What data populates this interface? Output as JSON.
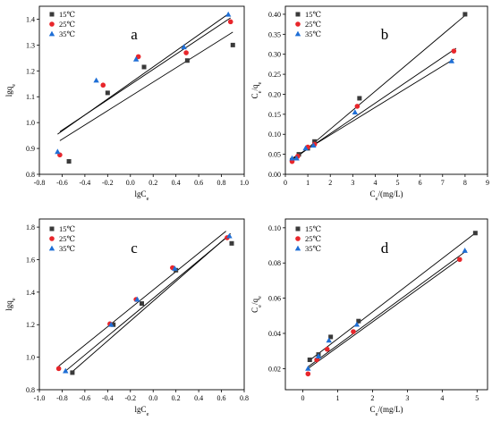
{
  "colors": {
    "series_15": "#3a3a3a",
    "series_25": "#e8262b",
    "series_35": "#1f6fd6",
    "fit_line": "#000000"
  },
  "chart_data": [
    {
      "type": "scatter",
      "panel": "a",
      "xlabel": "lgC",
      "xlabel_sub": "e",
      "ylabel": "lgq",
      "ylabel_sub": "e",
      "xlim": [
        -0.8,
        1.0
      ],
      "ylim": [
        0.8,
        1.45
      ],
      "xticks": [
        -0.8,
        -0.6,
        -0.4,
        -0.2,
        0.0,
        0.2,
        0.4,
        0.6,
        0.8,
        1.0
      ],
      "xtick_labels": [
        "-0.8",
        "-0.6",
        "-0.4",
        "-0.2",
        "0.0",
        "0.2",
        "0.4",
        "0.6",
        "0.8",
        "1.0"
      ],
      "yticks": [
        0.8,
        0.9,
        1.0,
        1.1,
        1.2,
        1.3,
        1.4
      ],
      "ytick_labels": [
        "0.8",
        "0.9",
        "1.0",
        "1.1",
        "1.2",
        "1.3",
        "1.4"
      ],
      "legend_position": "top-left",
      "series": [
        {
          "name": "15℃",
          "marker": "square",
          "x": [
            -0.54,
            -0.2,
            0.12,
            0.5,
            0.9
          ],
          "y": [
            0.85,
            1.115,
            1.215,
            1.24,
            1.3
          ],
          "fit": [
            [
              -0.62,
              0.93
            ],
            [
              0.9,
              1.35
            ]
          ]
        },
        {
          "name": "25℃",
          "marker": "circle",
          "x": [
            -0.62,
            -0.24,
            0.07,
            0.49,
            0.88
          ],
          "y": [
            0.875,
            1.145,
            1.255,
            1.27,
            1.39
          ],
          "fit": [
            [
              -0.62,
              0.965
            ],
            [
              0.88,
              1.405
            ]
          ]
        },
        {
          "name": "35℃",
          "marker": "triangle",
          "x": [
            -0.64,
            -0.3,
            0.05,
            0.47,
            0.86
          ],
          "y": [
            0.887,
            1.163,
            1.245,
            1.292,
            1.418
          ],
          "fit": [
            [
              -0.64,
              0.955
            ],
            [
              0.86,
              1.42
            ]
          ]
        }
      ]
    },
    {
      "type": "scatter",
      "panel": "b",
      "xlabel": "C",
      "xlabel_sub": "e",
      "xlabel_suffix": "/(mg/L)",
      "ylabel": "C",
      "ylabel_sub": "e",
      "ylabel_mid": "/q",
      "ylabel_sub2": "e",
      "xlim": [
        0,
        9
      ],
      "ylim": [
        0,
        0.42
      ],
      "xticks": [
        0,
        1,
        2,
        3,
        4,
        5,
        6,
        7,
        8,
        9
      ],
      "xtick_labels": [
        "0",
        "1",
        "2",
        "3",
        "4",
        "5",
        "6",
        "7",
        "8",
        "9"
      ],
      "yticks": [
        0.0,
        0.05,
        0.1,
        0.15,
        0.2,
        0.25,
        0.3,
        0.35,
        0.4
      ],
      "ytick_labels": [
        "0.00",
        "0.05",
        "0.10",
        "0.15",
        "0.20",
        "0.25",
        "0.30",
        "0.35",
        "0.40"
      ],
      "legend_position": "top-left",
      "series": [
        {
          "name": "15℃",
          "marker": "square",
          "x": [
            0.3,
            0.6,
            1.0,
            1.3,
            3.3,
            8.0
          ],
          "y": [
            0.035,
            0.05,
            0.065,
            0.082,
            0.19,
            0.4
          ],
          "fit": [
            [
              0.25,
              0.03
            ],
            [
              8.0,
              0.397
            ]
          ]
        },
        {
          "name": "25℃",
          "marker": "circle",
          "x": [
            0.3,
            0.55,
            1.0,
            1.3,
            3.2,
            7.5
          ],
          "y": [
            0.032,
            0.045,
            0.068,
            0.075,
            0.17,
            0.308
          ],
          "fit": [
            [
              0.25,
              0.035
            ],
            [
              7.6,
              0.315
            ]
          ]
        },
        {
          "name": "35℃",
          "marker": "triangle",
          "x": [
            0.3,
            0.5,
            0.9,
            1.25,
            3.1,
            7.4
          ],
          "y": [
            0.04,
            0.04,
            0.065,
            0.072,
            0.155,
            0.283
          ],
          "fit": [
            [
              0.25,
              0.038
            ],
            [
              7.5,
              0.288
            ]
          ]
        }
      ]
    },
    {
      "type": "scatter",
      "panel": "c",
      "xlabel": "lgC",
      "xlabel_sub": "e",
      "ylabel": "lgq",
      "ylabel_sub": "e",
      "xlim": [
        -1.0,
        0.8
      ],
      "ylim": [
        0.8,
        1.85
      ],
      "xticks": [
        -1.0,
        -0.8,
        -0.6,
        -0.4,
        -0.2,
        0.0,
        0.2,
        0.4,
        0.6,
        0.8
      ],
      "xtick_labels": [
        "-1.0",
        "-0.8",
        "-0.6",
        "-0.4",
        "-0.2",
        "0.0",
        "0.2",
        "0.4",
        "0.6",
        "0.8"
      ],
      "yticks": [
        0.8,
        1.0,
        1.2,
        1.4,
        1.6,
        1.8
      ],
      "ytick_labels": [
        "0.8",
        "1.0",
        "1.2",
        "1.4",
        "1.6",
        "1.8"
      ],
      "legend_position": "top-left",
      "series": [
        {
          "name": "15℃",
          "marker": "square",
          "x": [
            -0.71,
            -0.35,
            -0.1,
            0.2,
            0.69
          ],
          "y": [
            0.905,
            1.2,
            1.33,
            1.535,
            1.7
          ],
          "fit": [
            [
              -0.72,
              0.905
            ],
            [
              0.68,
              1.76
            ]
          ]
        },
        {
          "name": "25℃",
          "marker": "circle",
          "x": [
            -0.83,
            -0.38,
            -0.15,
            0.17,
            0.65
          ],
          "y": [
            0.93,
            1.205,
            1.355,
            1.55,
            1.735
          ],
          "fit": [
            [
              -0.83,
              0.945
            ],
            [
              0.64,
              1.775
            ]
          ]
        },
        {
          "name": "35℃",
          "marker": "triangle",
          "x": [
            -0.77,
            -0.37,
            -0.14,
            0.19,
            0.67
          ],
          "y": [
            0.915,
            1.2,
            1.355,
            1.545,
            1.745
          ],
          "fit": [
            [
              -0.77,
              0.915
            ],
            [
              0.66,
              1.745
            ]
          ]
        }
      ]
    },
    {
      "type": "scatter",
      "panel": "d",
      "xlabel": "C",
      "xlabel_sub": "e",
      "xlabel_suffix": "/(mg/L)",
      "ylabel": "C",
      "ylabel_sub": "e",
      "ylabel_mid": "/q",
      "ylabel_sub2": "e",
      "xlim": [
        -0.5,
        5.3
      ],
      "ylim": [
        0.008,
        0.105
      ],
      "xticks": [
        0,
        1,
        2,
        3,
        4,
        5
      ],
      "xtick_labels": [
        "0",
        "1",
        "2",
        "3",
        "4",
        "5"
      ],
      "yticks": [
        0.02,
        0.04,
        0.06,
        0.08,
        0.1
      ],
      "ytick_labels": [
        "0.02",
        "0.04",
        "0.06",
        "0.08",
        "0.10"
      ],
      "legend_position": "top-left",
      "series": [
        {
          "name": "15℃",
          "marker": "square",
          "x": [
            0.2,
            0.45,
            0.8,
            1.6,
            4.95
          ],
          "y": [
            0.025,
            0.028,
            0.038,
            0.047,
            0.097
          ],
          "fit": [
            [
              0.15,
              0.024
            ],
            [
              4.95,
              0.097
            ]
          ]
        },
        {
          "name": "25℃",
          "marker": "circle",
          "x": [
            0.15,
            0.4,
            0.7,
            1.45,
            4.5
          ],
          "y": [
            0.017,
            0.025,
            0.031,
            0.041,
            0.082
          ],
          "fit": [
            [
              0.15,
              0.02
            ],
            [
              4.55,
              0.083
            ]
          ]
        },
        {
          "name": "35℃",
          "marker": "triangle",
          "x": [
            0.15,
            0.45,
            0.75,
            1.55,
            4.65
          ],
          "y": [
            0.02,
            0.027,
            0.036,
            0.045,
            0.087
          ],
          "fit": [
            [
              0.15,
              0.021
            ],
            [
              4.7,
              0.087
            ]
          ]
        }
      ]
    }
  ]
}
